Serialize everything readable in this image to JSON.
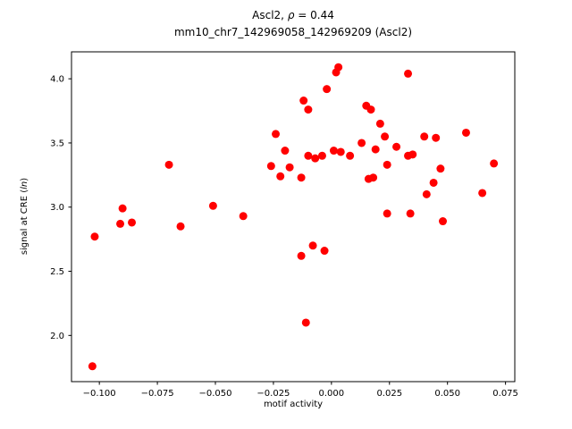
{
  "figure": {
    "title_line1_pre": "Ascl2, ",
    "title_line1_italic": "ρ",
    "title_line1_post": " = 0.44",
    "title_line2": "mm10_chr7_142969058_142969209 (Ascl2)",
    "xlabel": "motif activity",
    "ylabel_pre": "signal at CRE (",
    "ylabel_italic": "ln",
    "ylabel_post": ")"
  },
  "chart_data": {
    "type": "scatter",
    "title": "Ascl2, ρ = 0.44\nmm10_chr7_142969058_142969209 (Ascl2)",
    "xlabel": "motif activity",
    "ylabel": "signal at CRE (ln)",
    "marker_color": "#ff0000",
    "marker_radius": 4.5,
    "xlim": [
      -0.112,
      0.079
    ],
    "ylim": [
      1.64,
      4.21
    ],
    "grid": false,
    "legend": "none",
    "xticks": {
      "values": [
        -0.1,
        -0.075,
        -0.05,
        -0.025,
        0.0,
        0.025,
        0.05,
        0.075
      ],
      "labels": [
        "−0.100",
        "−0.075",
        "−0.050",
        "−0.025",
        "0.000",
        "0.025",
        "0.050",
        "0.075"
      ]
    },
    "yticks": {
      "values": [
        2.0,
        2.5,
        3.0,
        3.5,
        4.0
      ],
      "labels": [
        "2.0",
        "2.5",
        "3.0",
        "3.5",
        "4.0"
      ]
    },
    "points": [
      [
        -0.103,
        1.76
      ],
      [
        -0.102,
        2.77
      ],
      [
        -0.09,
        2.99
      ],
      [
        -0.091,
        2.87
      ],
      [
        -0.086,
        2.88
      ],
      [
        -0.07,
        3.33
      ],
      [
        -0.065,
        2.85
      ],
      [
        -0.051,
        3.01
      ],
      [
        -0.038,
        2.93
      ],
      [
        -0.026,
        3.32
      ],
      [
        -0.024,
        3.57
      ],
      [
        -0.02,
        3.44
      ],
      [
        -0.018,
        3.31
      ],
      [
        -0.022,
        3.24
      ],
      [
        -0.013,
        3.23
      ],
      [
        -0.012,
        3.83
      ],
      [
        -0.01,
        3.76
      ],
      [
        -0.01,
        3.4
      ],
      [
        -0.007,
        3.38
      ],
      [
        -0.013,
        2.62
      ],
      [
        -0.011,
        2.1
      ],
      [
        -0.008,
        2.7
      ],
      [
        -0.004,
        3.4
      ],
      [
        -0.002,
        3.92
      ],
      [
        0.002,
        4.05
      ],
      [
        0.003,
        4.09
      ],
      [
        0.001,
        3.44
      ],
      [
        0.004,
        3.43
      ],
      [
        -0.003,
        2.66
      ],
      [
        0.008,
        3.4
      ],
      [
        0.013,
        3.5
      ],
      [
        0.015,
        3.79
      ],
      [
        0.017,
        3.76
      ],
      [
        0.016,
        3.22
      ],
      [
        0.018,
        3.23
      ],
      [
        0.019,
        3.45
      ],
      [
        0.021,
        3.65
      ],
      [
        0.023,
        3.55
      ],
      [
        0.024,
        3.33
      ],
      [
        0.024,
        2.95
      ],
      [
        0.028,
        3.47
      ],
      [
        0.033,
        4.04
      ],
      [
        0.033,
        3.4
      ],
      [
        0.035,
        3.41
      ],
      [
        0.034,
        2.95
      ],
      [
        0.04,
        3.55
      ],
      [
        0.041,
        3.1
      ],
      [
        0.044,
        3.19
      ],
      [
        0.045,
        3.54
      ],
      [
        0.047,
        3.3
      ],
      [
        0.048,
        2.89
      ],
      [
        0.058,
        3.58
      ],
      [
        0.065,
        3.11
      ],
      [
        0.07,
        3.34
      ]
    ]
  }
}
